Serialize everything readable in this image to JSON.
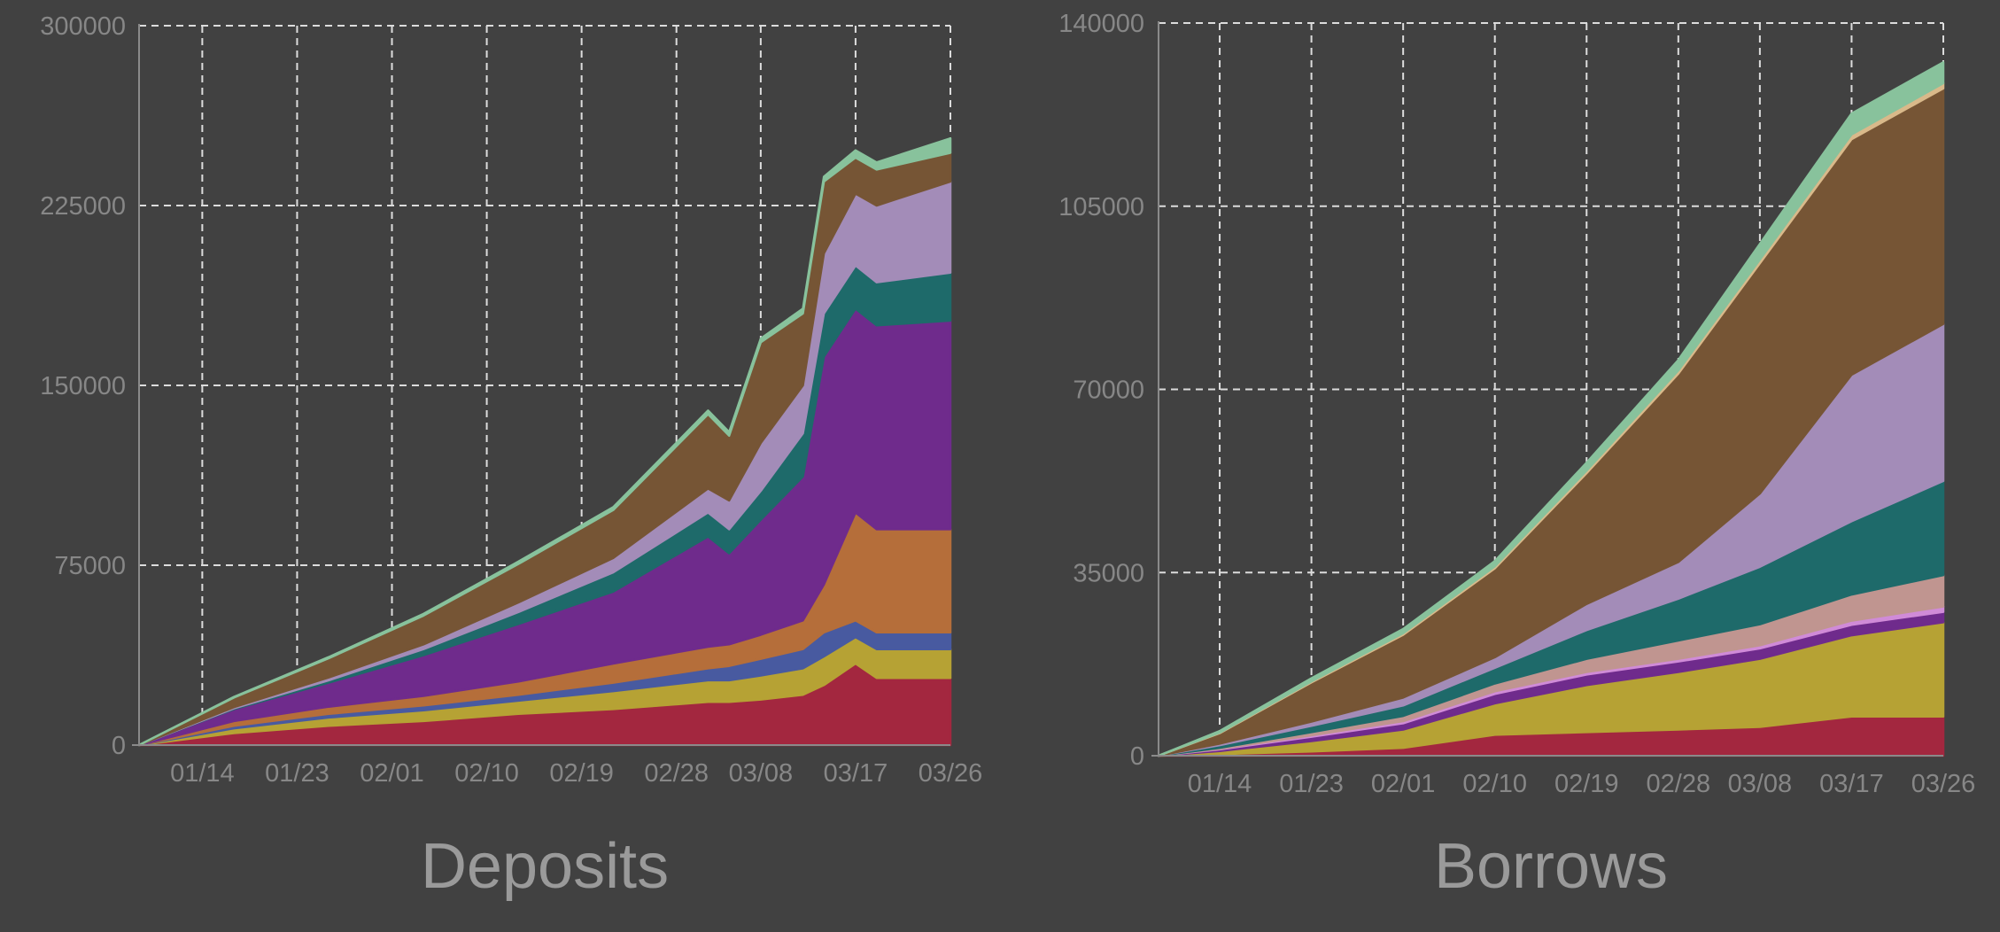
{
  "chart_data": [
    {
      "type": "area",
      "stacked": true,
      "title": "Deposits",
      "xlabel": "",
      "ylabel": "",
      "grid": true,
      "x_tick_labels": [
        "01/14",
        "01/23",
        "02/01",
        "02/10",
        "02/19",
        "02/28",
        "03/08",
        "03/17",
        "03/26"
      ],
      "y_tick_labels": [
        "0",
        "75000",
        "150000",
        "225000",
        "300000"
      ],
      "ylim": [
        0,
        300000
      ],
      "x_start": "01/08",
      "x": [
        "01/08",
        "01/17",
        "01/26",
        "02/04",
        "02/13",
        "02/22",
        "03/03",
        "03/05",
        "03/08",
        "03/12",
        "03/14",
        "03/17",
        "03/19",
        "03/26"
      ],
      "series": [
        {
          "color": "#a3273f",
          "values": [
            0,
            5000,
            8000,
            10000,
            13000,
            15000,
            18000,
            18000,
            19000,
            21000,
            25000,
            34000,
            28000,
            28000
          ]
        },
        {
          "color": "#b6a234",
          "values": [
            0,
            2000,
            3500,
            4500,
            5500,
            7500,
            9000,
            9000,
            10000,
            11000,
            12000,
            11000,
            12000,
            12000
          ]
        },
        {
          "color": "#485aa0",
          "values": [
            0,
            1000,
            1500,
            2000,
            2500,
            3500,
            5000,
            6000,
            7000,
            8000,
            10000,
            7000,
            7000,
            7000
          ]
        },
        {
          "color": "#b56e3a",
          "values": [
            0,
            2000,
            3000,
            4000,
            5500,
            8000,
            9000,
            9000,
            10000,
            12000,
            20000,
            45000,
            43000,
            43000
          ]
        },
        {
          "color": "#6f2b8c",
          "values": [
            0,
            5000,
            10000,
            17000,
            24000,
            30000,
            46000,
            38000,
            48000,
            60000,
            95000,
            85000,
            85000,
            87000
          ]
        },
        {
          "color": "#1e6a6a",
          "values": [
            0,
            300,
            1000,
            2500,
            5000,
            8000,
            10000,
            10000,
            12000,
            18000,
            18000,
            18000,
            18000,
            20000
          ]
        },
        {
          "color": "#a38cb8",
          "values": [
            0,
            500,
            1200,
            2000,
            4000,
            6000,
            10000,
            12000,
            20000,
            20000,
            25000,
            30000,
            32000,
            38000
          ]
        },
        {
          "color": "#765535",
          "values": [
            0,
            4000,
            8000,
            12000,
            16000,
            20000,
            31000,
            27000,
            42000,
            30000,
            30000,
            15000,
            15000,
            12000
          ]
        },
        {
          "color": "#88c29c",
          "values": [
            0,
            300,
            500,
            700,
            1000,
            1200,
            1500,
            1500,
            1500,
            2000,
            2000,
            3000,
            3000,
            6000
          ]
        }
      ]
    },
    {
      "type": "area",
      "stacked": true,
      "title": "Borrows",
      "xlabel": "",
      "ylabel": "",
      "grid": true,
      "x_tick_labels": [
        "01/14",
        "01/23",
        "02/01",
        "02/10",
        "02/19",
        "02/28",
        "03/08",
        "03/17",
        "03/26"
      ],
      "y_tick_labels": [
        "0",
        "35000",
        "70000",
        "105000",
        "140000"
      ],
      "ylim": [
        0,
        140000
      ],
      "x_start": "01/08",
      "x": [
        "01/08",
        "01/14",
        "01/23",
        "02/01",
        "02/10",
        "02/19",
        "02/28",
        "03/08",
        "03/17",
        "03/26"
      ],
      "series": [
        {
          "color": "#a3273f",
          "values": [
            0,
            300,
            800,
            1500,
            4000,
            4500,
            5000,
            5500,
            7500,
            7500
          ]
        },
        {
          "color": "#b6a234",
          "values": [
            0,
            600,
            2000,
            3500,
            6000,
            9000,
            11000,
            13000,
            15500,
            18000
          ]
        },
        {
          "color": "#6f2b8c",
          "values": [
            0,
            300,
            800,
            1200,
            1800,
            2000,
            2000,
            2000,
            2000,
            2000
          ]
        },
        {
          "color": "#d08bd8",
          "values": [
            0,
            100,
            300,
            400,
            500,
            500,
            500,
            600,
            800,
            1000
          ]
        },
        {
          "color": "#c09590",
          "values": [
            0,
            200,
            600,
            1000,
            1500,
            2500,
            3500,
            4000,
            5000,
            6000
          ]
        },
        {
          "color": "#1e6a6a",
          "values": [
            0,
            500,
            1200,
            2000,
            3000,
            5500,
            8000,
            11000,
            14000,
            18000
          ]
        },
        {
          "color": "#a38cb8",
          "values": [
            0,
            300,
            800,
            1500,
            2000,
            5000,
            7000,
            14000,
            28000,
            30000
          ]
        },
        {
          "color": "#765535",
          "values": [
            0,
            2000,
            7500,
            12000,
            17000,
            25000,
            36000,
            44000,
            45000,
            45000
          ]
        },
        {
          "color": "#d9b98a",
          "values": [
            0,
            100,
            200,
            300,
            400,
            500,
            600,
            700,
            900,
            1000
          ]
        },
        {
          "color": "#88c29c",
          "values": [
            0,
            300,
            600,
            800,
            1000,
            1500,
            2000,
            3000,
            4000,
            4000
          ]
        }
      ]
    }
  ]
}
